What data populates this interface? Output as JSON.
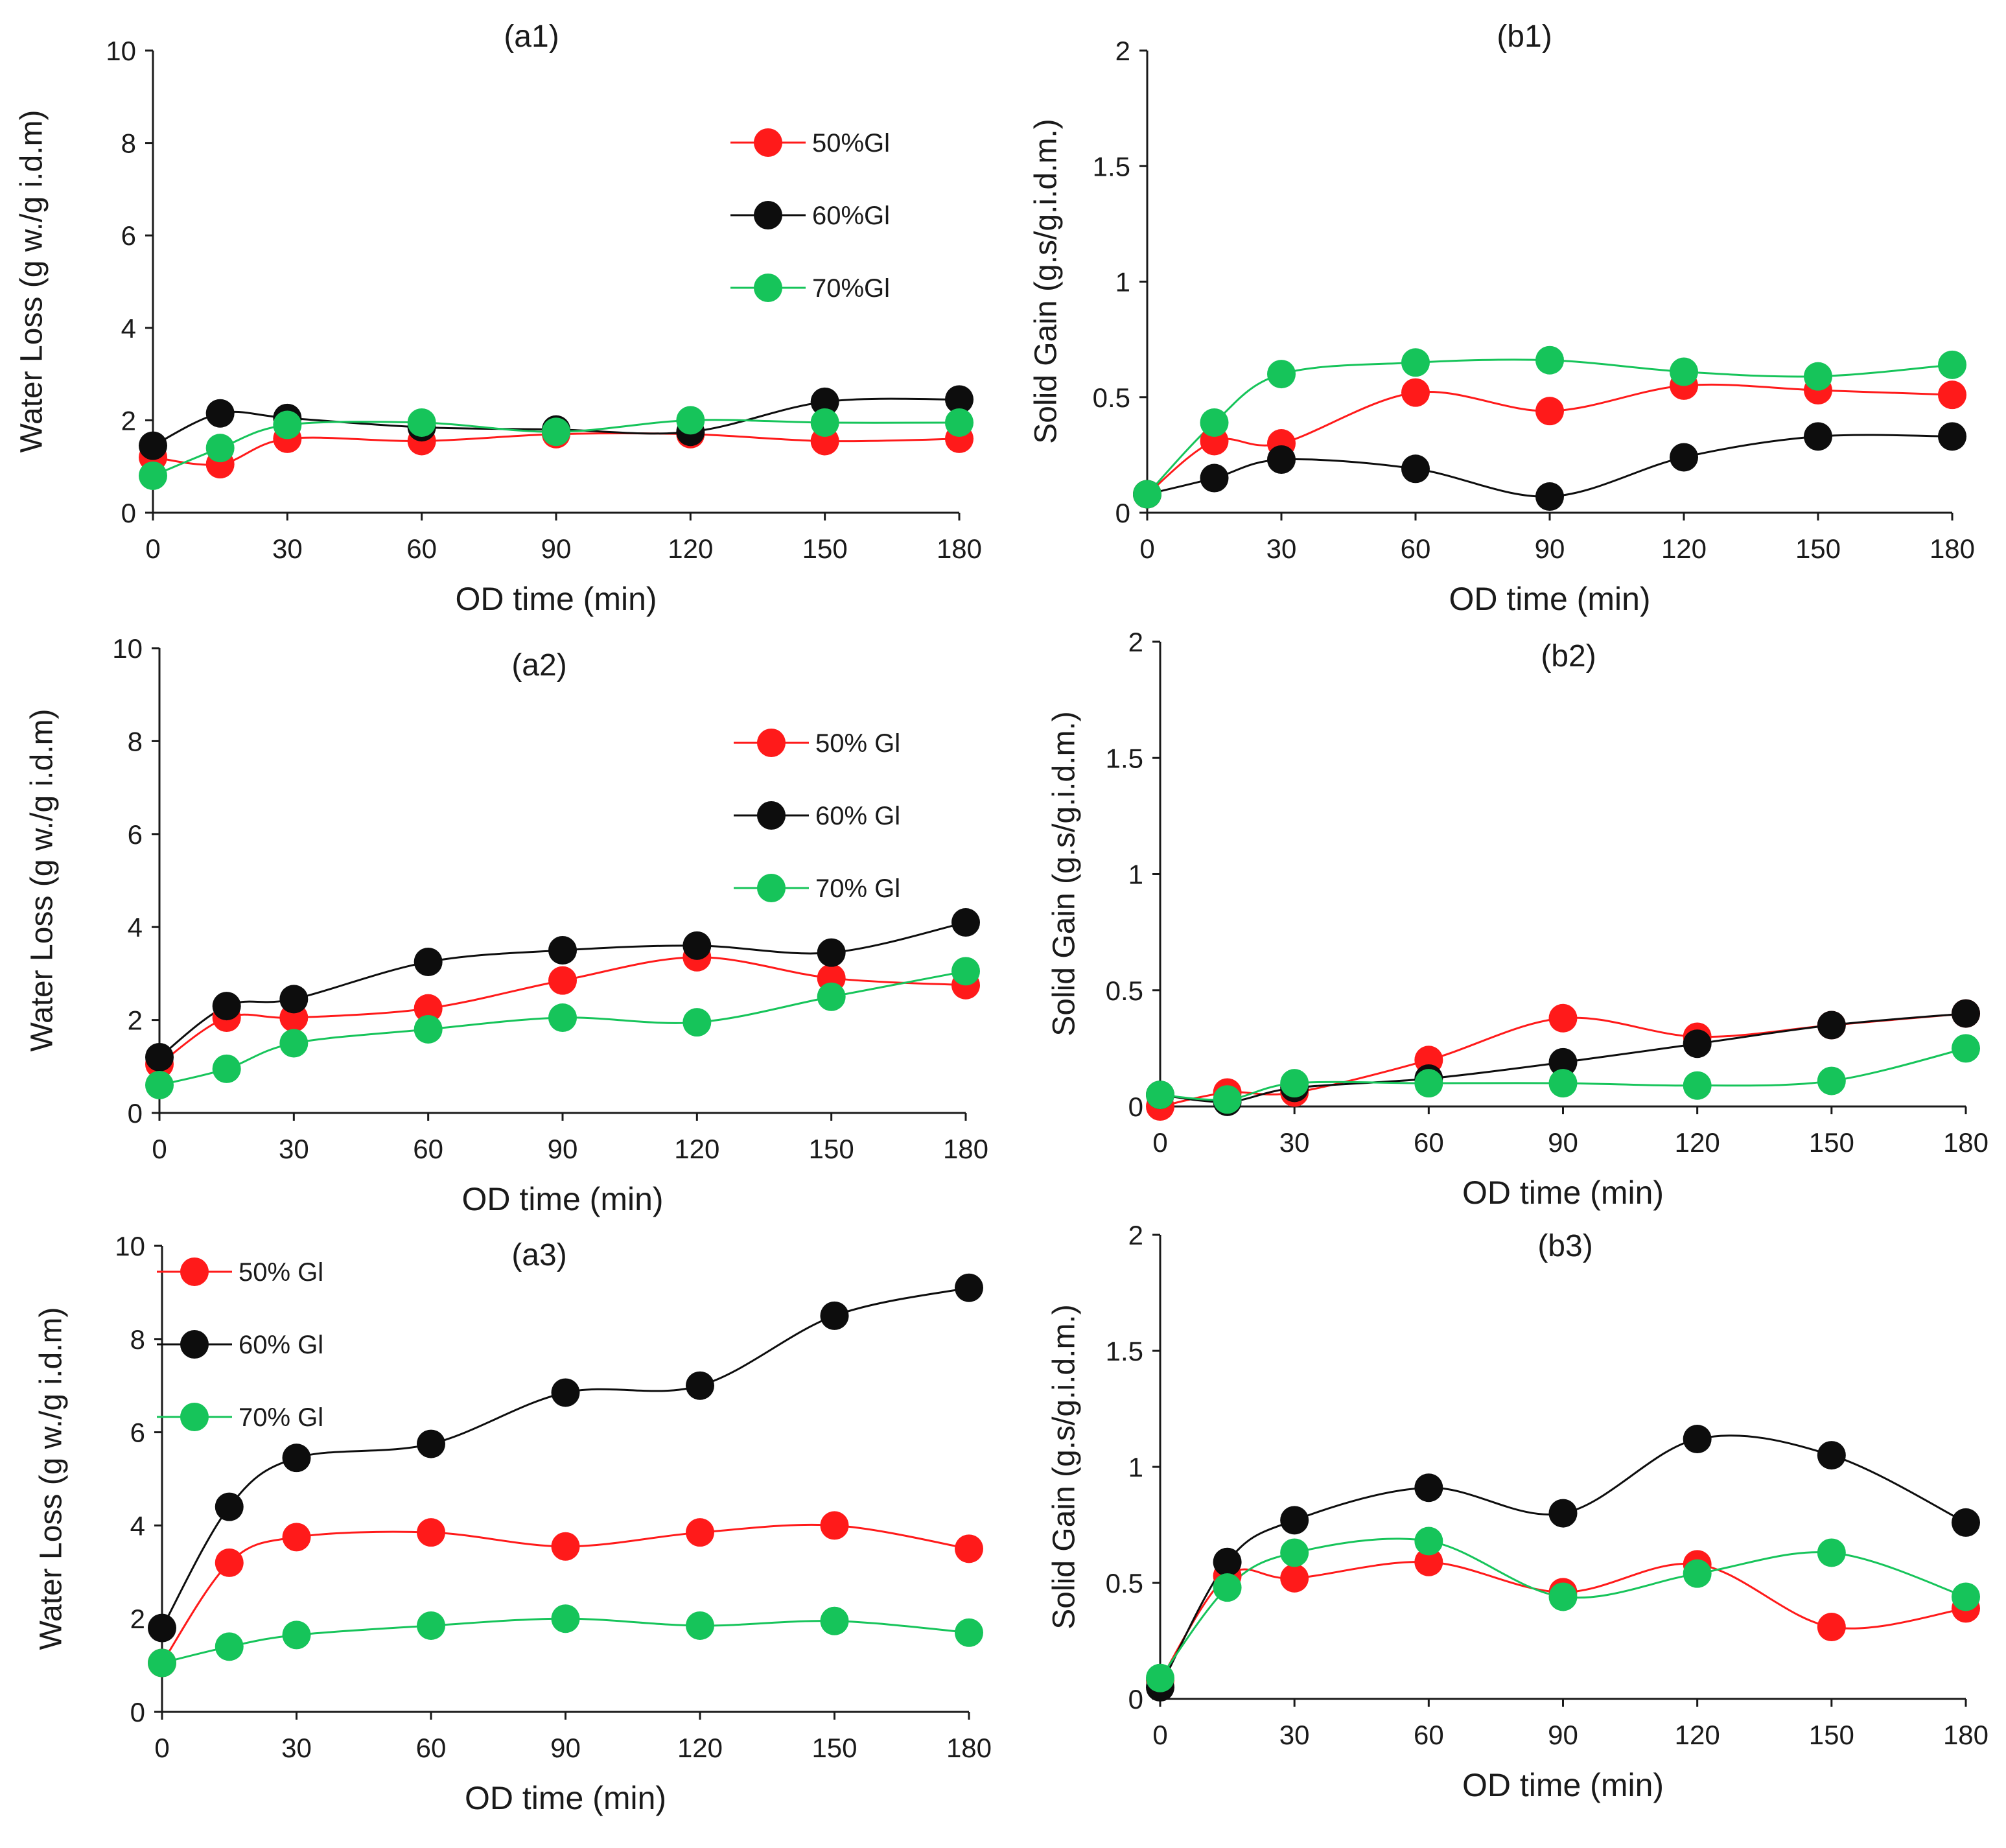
{
  "colors": {
    "s50": "#ff1a1a",
    "s60": "#0d0d0d",
    "s70": "#16c45a",
    "axis": "#1a1a1a"
  },
  "chart_data": [
    {
      "id": "a1",
      "type": "line",
      "title": "(a1)",
      "xlabel": "OD time (min)",
      "ylabel": "Water Loss (g w./g i.d.m)",
      "xlim": [
        0,
        180
      ],
      "ylim": [
        0,
        10
      ],
      "xticks": [
        0,
        30,
        60,
        90,
        120,
        150,
        180
      ],
      "xtick_labels": [
        "0",
        "30",
        "60",
        "90",
        "120",
        "150",
        "180"
      ],
      "yticks": [
        0,
        2,
        4,
        6,
        8,
        10
      ],
      "ytick_labels": [
        "0",
        "2",
        "4",
        "6",
        "8",
        "10"
      ],
      "x": [
        0,
        15,
        30,
        60,
        90,
        120,
        150,
        180
      ],
      "legend_position": "top-right",
      "series": [
        {
          "name": "50%Gl",
          "color_key": "s50",
          "values": [
            1.2,
            1.05,
            1.6,
            1.55,
            1.7,
            1.7,
            1.55,
            1.6
          ]
        },
        {
          "name": "60%Gl",
          "color_key": "s60",
          "values": [
            1.45,
            2.15,
            2.05,
            1.85,
            1.8,
            1.75,
            2.4,
            2.45
          ]
        },
        {
          "name": "70%Gl",
          "color_key": "s70",
          "values": [
            0.8,
            1.4,
            1.9,
            1.95,
            1.75,
            2.0,
            1.95,
            1.95
          ]
        }
      ]
    },
    {
      "id": "b1",
      "type": "line",
      "title": "(b1)",
      "xlabel": "OD time (min)",
      "ylabel": "Solid Gain (g.s/g.i.d.m.)",
      "xlim": [
        0,
        180
      ],
      "ylim": [
        0,
        2
      ],
      "xticks": [
        0,
        30,
        60,
        90,
        120,
        150,
        180
      ],
      "xtick_labels": [
        "0",
        "30",
        "60",
        "90",
        "120",
        "150",
        "180"
      ],
      "yticks": [
        0,
        0.5,
        1,
        1.5,
        2
      ],
      "ytick_labels": [
        "0",
        "0.5",
        "1",
        "1.5",
        "2"
      ],
      "x": [
        0,
        15,
        30,
        60,
        90,
        120,
        150,
        180
      ],
      "series": [
        {
          "name": "50%Gl",
          "color_key": "s50",
          "values": [
            0.08,
            0.31,
            0.3,
            0.52,
            0.44,
            0.55,
            0.53,
            0.51
          ]
        },
        {
          "name": "60%Gl",
          "color_key": "s60",
          "values": [
            0.08,
            0.15,
            0.23,
            0.19,
            0.07,
            0.24,
            0.33,
            0.33
          ]
        },
        {
          "name": "70%Gl",
          "color_key": "s70",
          "values": [
            0.08,
            0.39,
            0.6,
            0.65,
            0.66,
            0.61,
            0.59,
            0.64
          ]
        }
      ]
    },
    {
      "id": "a2",
      "type": "line",
      "title": "(a2)",
      "xlabel": "OD time (min)",
      "ylabel": "Water Loss (g w./g i.d.m)",
      "xlim": [
        0,
        180
      ],
      "ylim": [
        0,
        10
      ],
      "xticks": [
        0,
        30,
        60,
        90,
        120,
        150,
        180
      ],
      "xtick_labels": [
        "0",
        "30",
        "60",
        "90",
        "120",
        "150",
        "180"
      ],
      "yticks": [
        0,
        2,
        4,
        6,
        8,
        10
      ],
      "ytick_labels": [
        "0",
        "2",
        "4",
        "6",
        "8",
        "10"
      ],
      "x": [
        0,
        15,
        30,
        60,
        90,
        120,
        150,
        180
      ],
      "legend_position": "top-right",
      "series": [
        {
          "name": "50% Gl",
          "color_key": "s50",
          "values": [
            1.05,
            2.05,
            2.05,
            2.25,
            2.85,
            3.35,
            2.9,
            2.75
          ]
        },
        {
          "name": "60% Gl",
          "color_key": "s60",
          "values": [
            1.2,
            2.3,
            2.45,
            3.25,
            3.5,
            3.6,
            3.45,
            4.1
          ]
        },
        {
          "name": "70% Gl",
          "color_key": "s70",
          "values": [
            0.6,
            0.95,
            1.5,
            1.8,
            2.05,
            1.95,
            2.5,
            3.05
          ]
        }
      ]
    },
    {
      "id": "b2",
      "type": "line",
      "title": "(b2)",
      "xlabel": "OD time (min)",
      "ylabel": "Solid Gain (g.s/g.i.d.m.)",
      "xlim": [
        0,
        180
      ],
      "ylim": [
        0,
        2
      ],
      "xticks": [
        0,
        30,
        60,
        90,
        120,
        150,
        180
      ],
      "xtick_labels": [
        "0",
        "30",
        "60",
        "90",
        "120",
        "150",
        "180"
      ],
      "yticks": [
        0,
        0.5,
        1,
        1.5,
        2
      ],
      "ytick_labels": [
        "0",
        "0.5",
        "1",
        "1.5",
        "2"
      ],
      "x": [
        0,
        15,
        30,
        60,
        90,
        120,
        150,
        180
      ],
      "series": [
        {
          "name": "50% Gl",
          "color_key": "s50",
          "values": [
            0.0,
            0.06,
            0.06,
            0.2,
            0.38,
            0.3,
            0.35,
            0.4
          ]
        },
        {
          "name": "60% Gl",
          "color_key": "s60",
          "values": [
            0.05,
            0.02,
            0.08,
            0.12,
            0.19,
            0.27,
            0.35,
            0.4
          ]
        },
        {
          "name": "70% Gl",
          "color_key": "s70",
          "values": [
            0.05,
            0.03,
            0.1,
            0.1,
            0.1,
            0.09,
            0.11,
            0.25
          ]
        }
      ]
    },
    {
      "id": "a3",
      "type": "line",
      "title": "(a3)",
      "xlabel": "OD time (min)",
      "ylabel": "Water Loss (g w./g i.d.m)",
      "xlim": [
        0,
        180
      ],
      "ylim": [
        0,
        10
      ],
      "xticks": [
        0,
        30,
        60,
        90,
        120,
        150,
        180
      ],
      "xtick_labels": [
        "0",
        "30",
        "60",
        "90",
        "120",
        "150",
        "180"
      ],
      "yticks": [
        0,
        2,
        4,
        6,
        8,
        10
      ],
      "ytick_labels": [
        "0",
        "2",
        "4",
        "6",
        "8",
        "10"
      ],
      "x": [
        0,
        15,
        30,
        60,
        90,
        120,
        150,
        180
      ],
      "legend_position": "top-left",
      "series": [
        {
          "name": "50% Gl",
          "color_key": "s50",
          "values": [
            1.05,
            3.2,
            3.75,
            3.85,
            3.55,
            3.85,
            4.0,
            3.5
          ]
        },
        {
          "name": "60% Gl",
          "color_key": "s60",
          "values": [
            1.8,
            4.4,
            5.45,
            5.75,
            6.85,
            7.0,
            8.5,
            9.1
          ]
        },
        {
          "name": "70% Gl",
          "color_key": "s70",
          "values": [
            1.05,
            1.4,
            1.65,
            1.85,
            2.0,
            1.85,
            1.95,
            1.7
          ]
        }
      ]
    },
    {
      "id": "b3",
      "type": "line",
      "title": "(b3)",
      "xlabel": "OD time (min)",
      "ylabel": "Solid Gain (g.s/g.i.d.m.)",
      "xlim": [
        0,
        180
      ],
      "ylim": [
        0,
        2
      ],
      "xticks": [
        0,
        30,
        60,
        90,
        120,
        150,
        180
      ],
      "xtick_labels": [
        "0",
        "30",
        "60",
        "90",
        "120",
        "150",
        "180"
      ],
      "yticks": [
        0,
        0.5,
        1,
        1.5,
        2
      ],
      "ytick_labels": [
        "0",
        "0.5",
        "1",
        "1.5",
        "2"
      ],
      "x": [
        0,
        15,
        30,
        60,
        90,
        120,
        150,
        180
      ],
      "series": [
        {
          "name": "50% Gl",
          "color_key": "s50",
          "values": [
            0.08,
            0.53,
            0.52,
            0.59,
            0.46,
            0.58,
            0.31,
            0.39
          ]
        },
        {
          "name": "60% Gl",
          "color_key": "s60",
          "values": [
            0.05,
            0.59,
            0.77,
            0.91,
            0.8,
            1.12,
            1.05,
            0.76
          ]
        },
        {
          "name": "70% Gl",
          "color_key": "s70",
          "values": [
            0.09,
            0.48,
            0.63,
            0.68,
            0.44,
            0.54,
            0.63,
            0.44
          ]
        }
      ]
    }
  ]
}
